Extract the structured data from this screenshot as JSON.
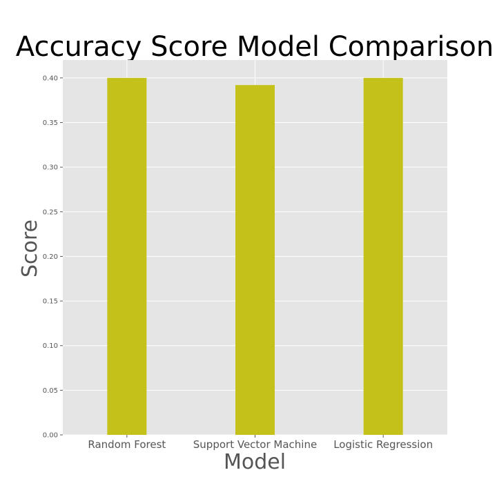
{
  "chart_data": {
    "type": "bar",
    "title": "Accuracy Score Model Comparison",
    "xlabel": "Model",
    "ylabel": "Score",
    "categories": [
      "Random Forest",
      "Support Vector Machine",
      "Logistic Regression"
    ],
    "values": [
      0.4,
      0.392,
      0.4
    ],
    "ylim": [
      0,
      0.42
    ],
    "yticks": [
      "0.00",
      "0.05",
      "0.10",
      "0.15",
      "0.20",
      "0.25",
      "0.30",
      "0.35",
      "0.40"
    ],
    "grid": true,
    "bar_color": "#c4c21a",
    "background_color": "#e5e5e5",
    "grid_color": "#ffffff"
  }
}
